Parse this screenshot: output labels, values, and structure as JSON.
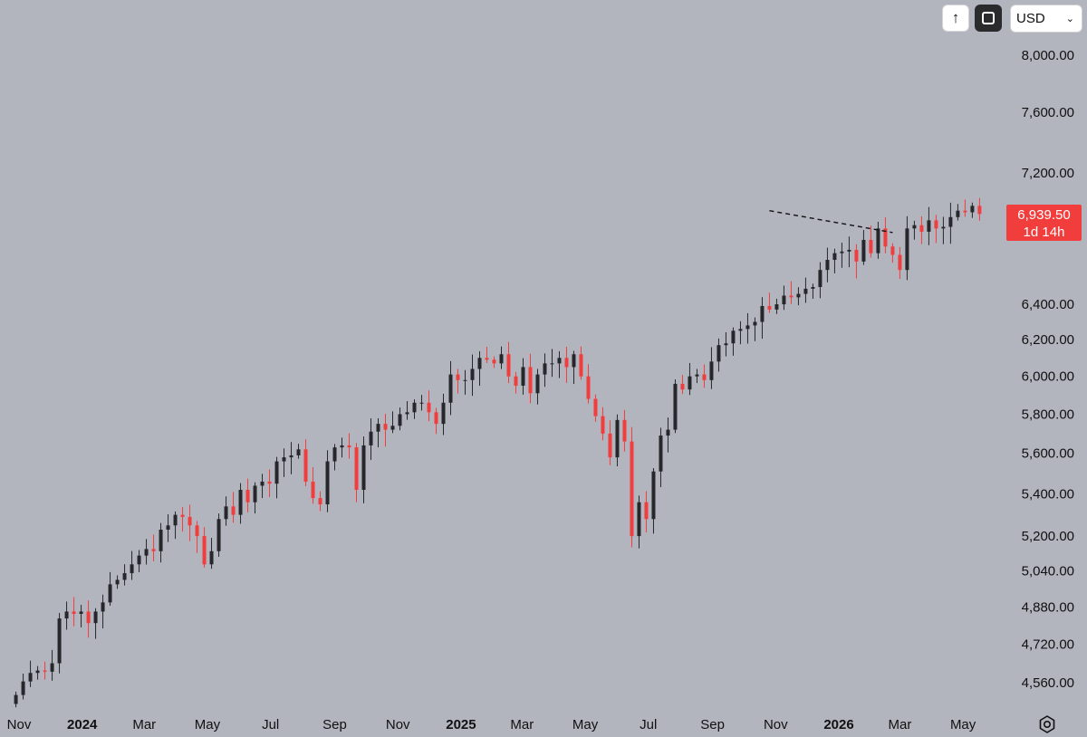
{
  "toolbar": {
    "log_icon": "arrow-up-icon",
    "scale_icon": "auto-scale-icon",
    "currency": "USD",
    "currency_icon": "chevron-down-icon"
  },
  "price_tag": {
    "price": "6,939.50",
    "countdown": "1d 14h",
    "color": "#f23d3d"
  },
  "settings_icon": "gear-icon",
  "colors": {
    "up": "#26272b",
    "down": "#f23d3d",
    "background": "#b2b4be"
  },
  "chart_data": {
    "type": "candlestick",
    "interval": "1W",
    "scale": "log",
    "grid": false,
    "y_ticks": [
      "8,000.00",
      "7,600.00",
      "7,200.00",
      "6,400.00",
      "6,200.00",
      "6,000.00",
      "5,800.00",
      "5,600.00",
      "5,400.00",
      "5,200.00",
      "5,040.00",
      "4,880.00",
      "4,720.00",
      "4,560.00"
    ],
    "x_ticks": [
      {
        "label": "Nov",
        "date": "2023-11-01",
        "bold": false
      },
      {
        "label": "2024",
        "date": "2024-01-01",
        "bold": true
      },
      {
        "label": "Mar",
        "date": "2024-03-01",
        "bold": false
      },
      {
        "label": "May",
        "date": "2024-05-01",
        "bold": false
      },
      {
        "label": "Jul",
        "date": "2024-07-01",
        "bold": false
      },
      {
        "label": "Sep",
        "date": "2024-09-01",
        "bold": false
      },
      {
        "label": "Nov",
        "date": "2024-11-01",
        "bold": false
      },
      {
        "label": "2025",
        "date": "2025-01-01",
        "bold": true
      },
      {
        "label": "Mar",
        "date": "2025-03-01",
        "bold": false
      },
      {
        "label": "May",
        "date": "2025-05-01",
        "bold": false
      },
      {
        "label": "Jul",
        "date": "2025-07-01",
        "bold": false
      },
      {
        "label": "Sep",
        "date": "2025-09-01",
        "bold": false
      },
      {
        "label": "Nov",
        "date": "2025-11-01",
        "bold": false
      },
      {
        "label": "2026",
        "date": "2026-01-01",
        "bold": true
      },
      {
        "label": "Mar",
        "date": "2026-03-01",
        "bold": false
      },
      {
        "label": "May",
        "date": "2026-05-01",
        "bold": false
      }
    ],
    "trendline": {
      "from": {
        "date": "2025-10-26",
        "price": 6960
      },
      "to": {
        "date": "2026-02-22",
        "price": 6825
      },
      "style": "dashed"
    },
    "weekly_closes": [
      4510,
      4565,
      4600,
      4610,
      4605,
      4640,
      4830,
      4860,
      4850,
      4860,
      4810,
      4860,
      4900,
      4980,
      5000,
      5030,
      5070,
      5110,
      5140,
      5130,
      5230,
      5250,
      5300,
      5290,
      5250,
      5200,
      5070,
      5130,
      5280,
      5340,
      5300,
      5420,
      5360,
      5440,
      5460,
      5450,
      5560,
      5580,
      5590,
      5620,
      5460,
      5380,
      5350,
      5560,
      5630,
      5640,
      5630,
      5420,
      5640,
      5710,
      5750,
      5720,
      5740,
      5800,
      5810,
      5860,
      5860,
      5810,
      5750,
      5860,
      6010,
      5980,
      5980,
      6040,
      6100,
      6090,
      6070,
      6120,
      6000,
      5950,
      6050,
      5910,
      6010,
      6070,
      6070,
      6100,
      6050,
      6120,
      6000,
      5880,
      5790,
      5700,
      5580,
      5770,
      5660,
      5200,
      5360,
      5280,
      5510,
      5690,
      5720,
      5960,
      5930,
      6000,
      6010,
      5980,
      6080,
      6170,
      6180,
      6250,
      6260,
      6280,
      6300,
      6390,
      6370,
      6400,
      6450,
      6440,
      6460,
      6490,
      6500,
      6600,
      6660,
      6700,
      6710,
      6720,
      6650,
      6780,
      6700,
      6850,
      6740,
      6690,
      6600,
      6850,
      6870,
      6830,
      6900,
      6850,
      6860,
      6920,
      6960,
      6950,
      6990,
      6939.5
    ]
  }
}
